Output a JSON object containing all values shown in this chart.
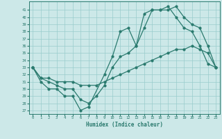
{
  "xlabel": "Humidex (Indice chaleur)",
  "xlim": [
    -0.5,
    23.5
  ],
  "ylim": [
    26.5,
    42.2
  ],
  "xticks": [
    0,
    1,
    2,
    3,
    4,
    5,
    6,
    7,
    8,
    9,
    10,
    11,
    12,
    13,
    14,
    15,
    16,
    17,
    18,
    19,
    20,
    21,
    22,
    23
  ],
  "yticks": [
    27,
    28,
    29,
    30,
    31,
    32,
    33,
    34,
    35,
    36,
    37,
    38,
    39,
    40,
    41
  ],
  "bg_color": "#cce8e8",
  "grid_color": "#99cccc",
  "line_color": "#2a7a6e",
  "line1_x": [
    0,
    1,
    2,
    3,
    4,
    5,
    6,
    7,
    9,
    10,
    11,
    12,
    13,
    14,
    15,
    16,
    17,
    18,
    19,
    20,
    21,
    22,
    23
  ],
  "line1_y": [
    33,
    31,
    30,
    30,
    29,
    29,
    27,
    27.5,
    32,
    34.5,
    38,
    38.5,
    36,
    38.5,
    41,
    41,
    41,
    41.5,
    40,
    39,
    38.5,
    36,
    33
  ],
  "line2_x": [
    0,
    1,
    2,
    3,
    4,
    5,
    6,
    7,
    8,
    9,
    10,
    11,
    12,
    13,
    14,
    15,
    16,
    17,
    18,
    19,
    20,
    21,
    22,
    23
  ],
  "line2_y": [
    33,
    31.5,
    31,
    30.5,
    30,
    30,
    28.5,
    28,
    29,
    30.5,
    33,
    34.5,
    35,
    36,
    40.5,
    41,
    41,
    41.5,
    40,
    38.5,
    38,
    36,
    33.5,
    33
  ],
  "line3_x": [
    0,
    1,
    2,
    3,
    4,
    5,
    6,
    7,
    8,
    9,
    10,
    11,
    12,
    13,
    14,
    15,
    16,
    17,
    18,
    19,
    20,
    21,
    22,
    23
  ],
  "line3_y": [
    33,
    31.5,
    31.5,
    31,
    31,
    31,
    30.5,
    30.5,
    30.5,
    31,
    31.5,
    32,
    32.5,
    33,
    33.5,
    34,
    34.5,
    35,
    35.5,
    35.5,
    36,
    35.5,
    35,
    33
  ]
}
